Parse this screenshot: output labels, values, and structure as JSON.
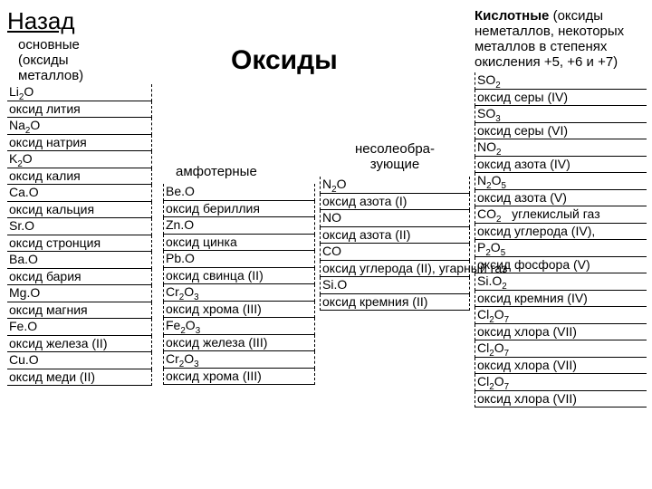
{
  "back": "Назад",
  "title": "Оксиды",
  "columns": {
    "basic": {
      "header": "основные (оксиды металлов)",
      "rows": [
        {
          "f": "Li<sub>2</sub>O",
          "n": "оксид лития"
        },
        {
          "f": "Na<sub>2</sub>O",
          "n": "оксид натрия"
        },
        {
          "f": "K<sub>2</sub>O",
          "n": "оксид калия"
        },
        {
          "f": "Ca.O",
          "n": "оксид кальция"
        },
        {
          "f": "Sr.O",
          "n": "оксид стронция"
        },
        {
          "f": "Ba.O",
          "n": "оксид бария"
        },
        {
          "f": "Mg.O",
          "n": "оксид магния"
        },
        {
          "f": "Fe.O",
          "n": "оксид железа (II)"
        },
        {
          "f": "Cu.O",
          "n": "оксид меди (II)"
        }
      ]
    },
    "ampho": {
      "header": "амфотерные",
      "rows": [
        {
          "f": "Be.O",
          "n": "оксид бериллия"
        },
        {
          "f": "Zn.O",
          "n": "оксид цинка"
        },
        {
          "f": "Pb.O",
          "n": "оксид свинца (II)"
        },
        {
          "f": "Cr<sub>2</sub>O<sub>3</sub>",
          "n": "оксид хрома (III)"
        },
        {
          "f": "Fe<sub>2</sub>O<sub>3</sub>",
          "n": "оксид железа (III)"
        },
        {
          "f": "Cr<sub>2</sub>O<sub>3</sub>",
          "n": "оксид хрома (III)"
        }
      ]
    },
    "nonsalt": {
      "header": "несолеобра-\nзующие",
      "rows": [
        {
          "f": "N<sub>2</sub>O",
          "n": "оксид азота (I)"
        },
        {
          "f": "NO",
          "n": "оксид азота (II)"
        },
        {
          "f": "CO",
          "n": "оксид углерода (II), угарный газ"
        },
        {
          "f": "Si.O",
          "n": "оксид кремния (II)"
        }
      ]
    },
    "acid": {
      "header": "Кислотные (оксиды неметаллов, некоторых металлов в степенях окисления +5, +6 и +7)",
      "rows": [
        {
          "f": "SO<sub>2</sub>",
          "n": "оксид серы (IV)"
        },
        {
          "f": "SO<sub>3</sub>",
          "n": "оксид серы (VI)"
        },
        {
          "f": "NO<sub>2</sub>",
          "n": "оксид азота (IV)"
        },
        {
          "f": "N<sub>2</sub>O<sub>5</sub>",
          "n": "оксид азота (V)"
        },
        {
          "f": "CO<sub>2</sub>&nbsp;&nbsp;&nbsp;углекислый газ",
          "n": "оксид углерода (IV),"
        },
        {
          "f": "P<sub>2</sub>O<sub>5</sub>",
          "n": "оксид фосфора (V)"
        },
        {
          "f": "Si.O<sub>2</sub>",
          "n": "оксид кремния (IV)"
        },
        {
          "f": "Cl<sub>2</sub>O<sub>7</sub>",
          "n": "оксид хлора (VII)"
        },
        {
          "f": "Cl<sub>2</sub>O<sub>7</sub>",
          "n": "оксид хлора (VII)"
        },
        {
          "f": "Cl<sub>2</sub>O<sub>7</sub>",
          "n": "оксид хлора (VII)"
        }
      ]
    }
  }
}
